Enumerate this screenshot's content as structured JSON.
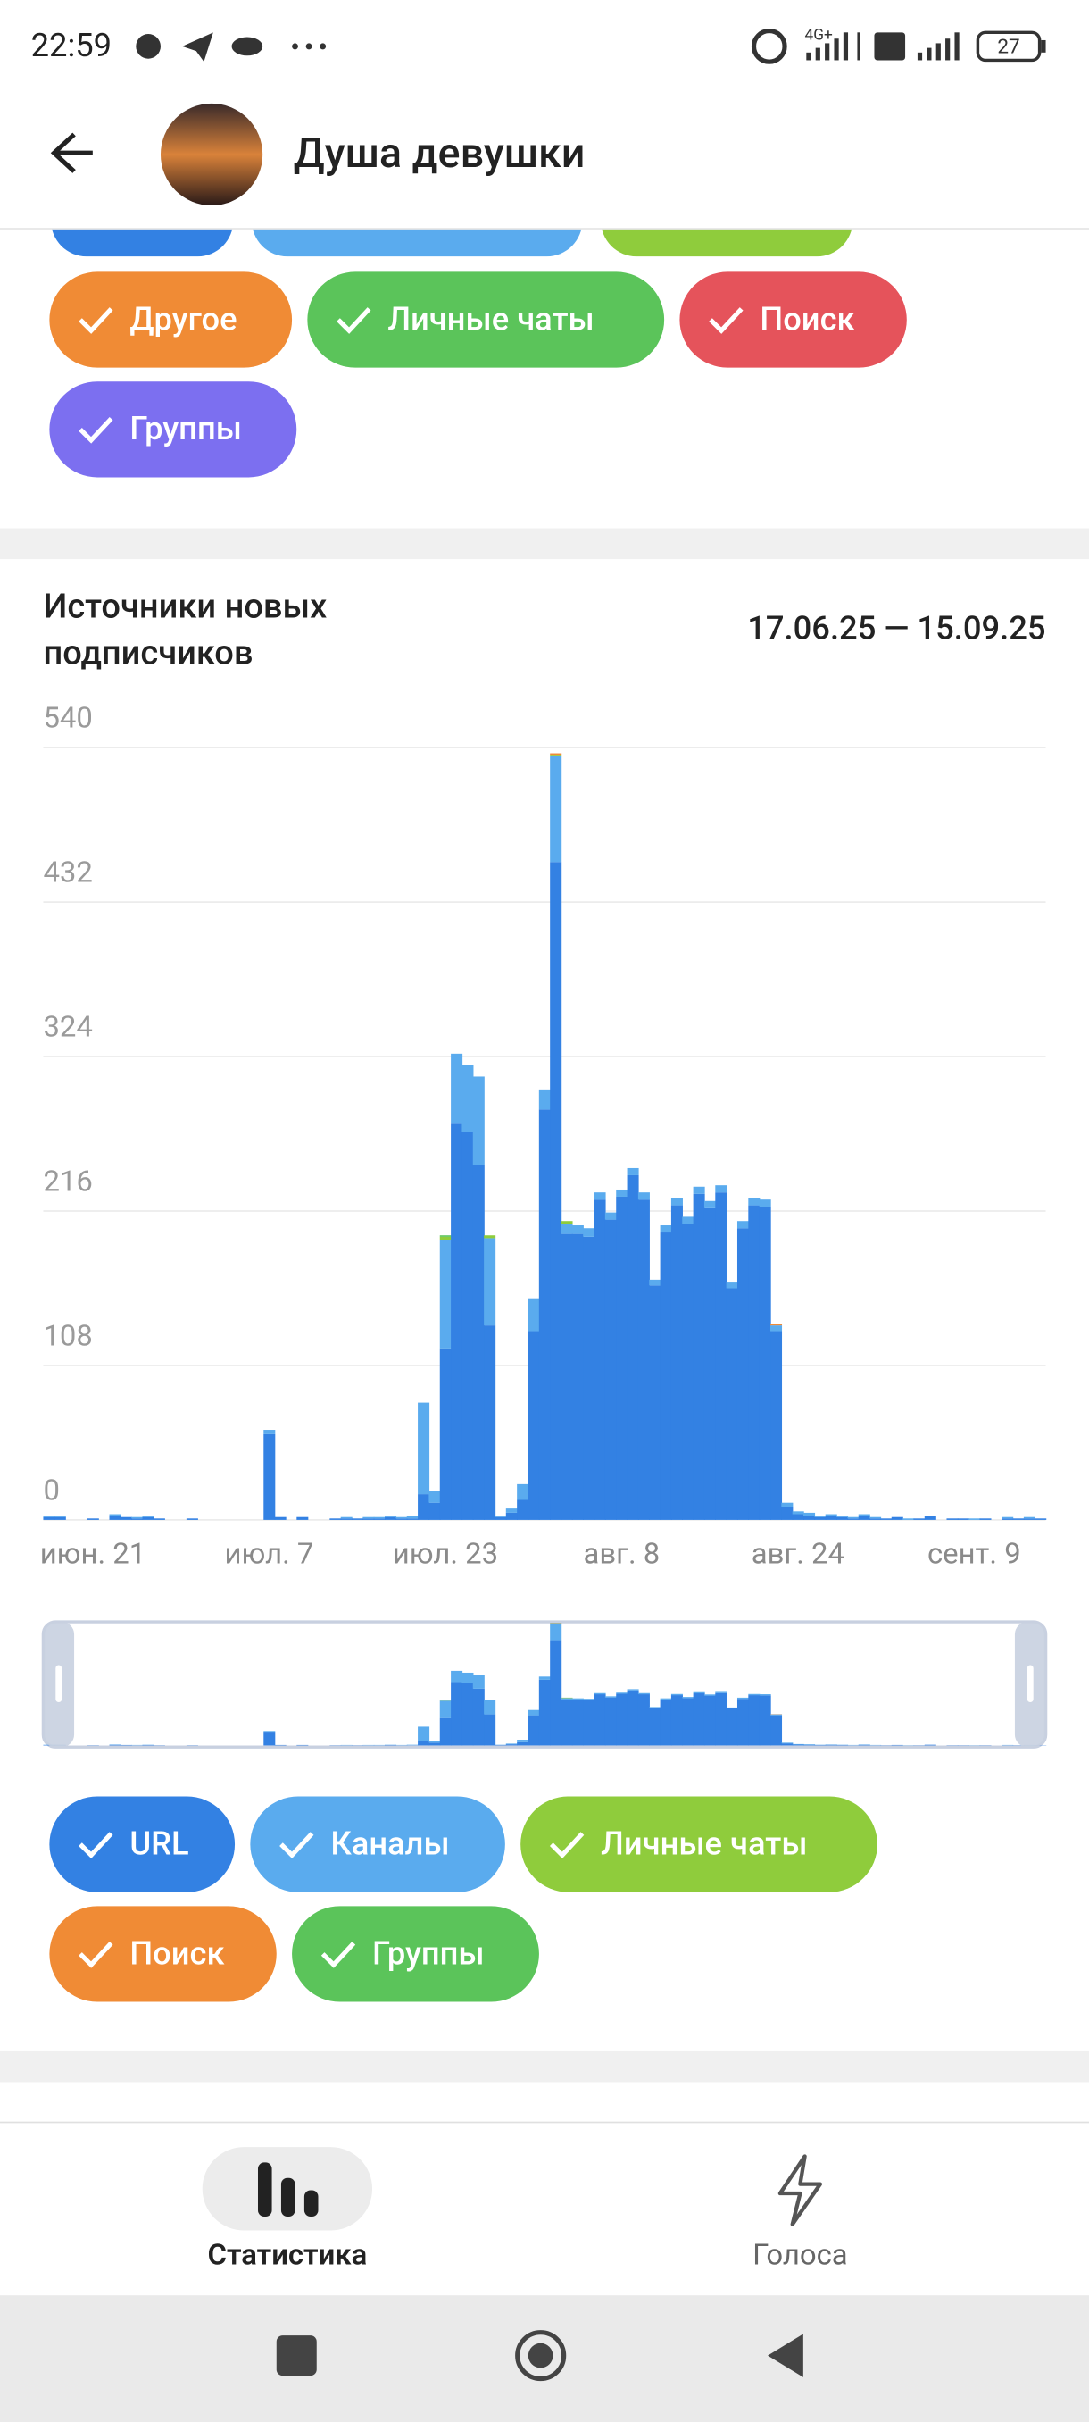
{
  "status_bar": {
    "time": "22:59",
    "network": "4G+",
    "battery": "27"
  },
  "header": {
    "title": "Душа девушки"
  },
  "filters": [
    {
      "label": "Другое",
      "color": "#f08b35"
    },
    {
      "label": "Личные чаты",
      "color": "#5bc45a"
    },
    {
      "label": "Поиск",
      "color": "#e5535b"
    },
    {
      "label": "Группы",
      "color": "#7c6ff0"
    }
  ],
  "chart_data": {
    "type": "bar",
    "stacked": true,
    "title": "Источники новых подписчиков",
    "subtitle": "17.06.25 — 15.09.25",
    "categories": [
      null,
      null,
      null,
      null,
      "июн. 21",
      null,
      null,
      null,
      null,
      null,
      null,
      null,
      null,
      null,
      null,
      null,
      null,
      null,
      null,
      null,
      "июл. 7",
      null,
      null,
      null,
      null,
      null,
      null,
      null,
      null,
      null,
      null,
      null,
      null,
      null,
      null,
      null,
      "июл. 23",
      null,
      null,
      null,
      null,
      null,
      null,
      null,
      null,
      null,
      null,
      null,
      null,
      null,
      null,
      null,
      "авг. 8",
      null,
      null,
      null,
      null,
      null,
      null,
      null,
      null,
      null,
      null,
      null,
      null,
      null,
      null,
      null,
      "авг. 24",
      null,
      null,
      null,
      null,
      null,
      null,
      null,
      null,
      null,
      null,
      null,
      null,
      null,
      null,
      null,
      "сент. 9",
      null,
      null,
      null,
      null,
      null,
      null
    ],
    "series": [
      {
        "name": "URL",
        "color": "#3381e3",
        "values": [
          2,
          2,
          0,
          0,
          1,
          0,
          3,
          2,
          1,
          2,
          1,
          0,
          0,
          1,
          0,
          0,
          0,
          0,
          0,
          0,
          60,
          2,
          0,
          2,
          0,
          0,
          1,
          1,
          1,
          1,
          1,
          2,
          1,
          1,
          18,
          12,
          120,
          277,
          271,
          248,
          136,
          2,
          5,
          14,
          132,
          287,
          460,
          200,
          200,
          198,
          224,
          210,
          226,
          241,
          224,
          164,
          201,
          220,
          207,
          228,
          218,
          229,
          162,
          204,
          220,
          219,
          132,
          9,
          4,
          3,
          2,
          3,
          2,
          1,
          3,
          1,
          1,
          2,
          0,
          1,
          3,
          0,
          1,
          1,
          0,
          1,
          0,
          1,
          1,
          1,
          1
        ]
      },
      {
        "name": "Каналы",
        "color": "#5aabee",
        "values": [
          1,
          1,
          0,
          0,
          0,
          0,
          1,
          0,
          1,
          1,
          0,
          0,
          0,
          0,
          0,
          0,
          0,
          0,
          0,
          0,
          3,
          0,
          0,
          0,
          0,
          0,
          0,
          1,
          0,
          1,
          1,
          1,
          1,
          2,
          64,
          8,
          76,
          49,
          47,
          62,
          61,
          1,
          3,
          11,
          23,
          14,
          74,
          7,
          6,
          6,
          5,
          5,
          5,
          5,
          5,
          4,
          5,
          5,
          5,
          5,
          5,
          5,
          4,
          5,
          5,
          5,
          4,
          3,
          2,
          2,
          1,
          1,
          1,
          1,
          1,
          1,
          0,
          0,
          1,
          0,
          0,
          0,
          0,
          0,
          1,
          0,
          0,
          1,
          0,
          1,
          0
        ]
      },
      {
        "name": "Личные чаты",
        "color": "#8fcc3c",
        "values": [
          0,
          0,
          0,
          0,
          0,
          0,
          0,
          0,
          0,
          0,
          0,
          0,
          0,
          0,
          0,
          0,
          0,
          0,
          0,
          0,
          0,
          0,
          0,
          0,
          0,
          0,
          0,
          0,
          0,
          0,
          0,
          0,
          0,
          0,
          0,
          0,
          2,
          0,
          0,
          0,
          2,
          0,
          0,
          0,
          0,
          0,
          1,
          2,
          0,
          0,
          0,
          0,
          0,
          0,
          0,
          0,
          0,
          0,
          0,
          0,
          0,
          0,
          0,
          0,
          0,
          0,
          0,
          0,
          0,
          0,
          0,
          0,
          0,
          0,
          0,
          0,
          0,
          0,
          0,
          0,
          0,
          0,
          0,
          0,
          0,
          0,
          0,
          0,
          0,
          0,
          0
        ]
      },
      {
        "name": "Поиск",
        "color": "#f08b35",
        "values": [
          0,
          0,
          0,
          0,
          0,
          0,
          0,
          0,
          0,
          0,
          0,
          0,
          0,
          0,
          0,
          0,
          0,
          0,
          0,
          0,
          0,
          0,
          0,
          0,
          0,
          0,
          0,
          0,
          0,
          0,
          0,
          0,
          0,
          0,
          0,
          0,
          0,
          0,
          0,
          0,
          0,
          0,
          0,
          0,
          0,
          0,
          1,
          0,
          0,
          0,
          0,
          0,
          0,
          0,
          0,
          0,
          0,
          0,
          0,
          0,
          0,
          0,
          0,
          0,
          0,
          0,
          1,
          0,
          0,
          0,
          0,
          0,
          0,
          0,
          0,
          0,
          0,
          0,
          0,
          0,
          0,
          0,
          0,
          0,
          0,
          0,
          0,
          0,
          0,
          0,
          0
        ]
      },
      {
        "name": "Группы",
        "color": "#5bc45a",
        "values": [
          0,
          0,
          0,
          0,
          0,
          0,
          0,
          0,
          0,
          0,
          0,
          0,
          0,
          0,
          0,
          0,
          0,
          0,
          0,
          0,
          0,
          0,
          0,
          0,
          0,
          0,
          0,
          0,
          0,
          0,
          0,
          0,
          0,
          0,
          0,
          0,
          1,
          0,
          0,
          0,
          0,
          0,
          0,
          0,
          0,
          0,
          0,
          0,
          0,
          0,
          0,
          0,
          0,
          0,
          0,
          0,
          0,
          0,
          0,
          0,
          0,
          0,
          0,
          0,
          0,
          0,
          0,
          0,
          0,
          0,
          0,
          0,
          0,
          0,
          0,
          0,
          0,
          0,
          0,
          0,
          0,
          0,
          0,
          0,
          0,
          0,
          0,
          0,
          0,
          0,
          0
        ]
      }
    ],
    "ylim": [
      0,
      540
    ],
    "yticks": [
      0,
      108,
      216,
      324,
      432,
      540
    ],
    "grid": true
  },
  "nav": [
    {
      "label": "Статистика"
    },
    {
      "label": "Голоса"
    }
  ]
}
